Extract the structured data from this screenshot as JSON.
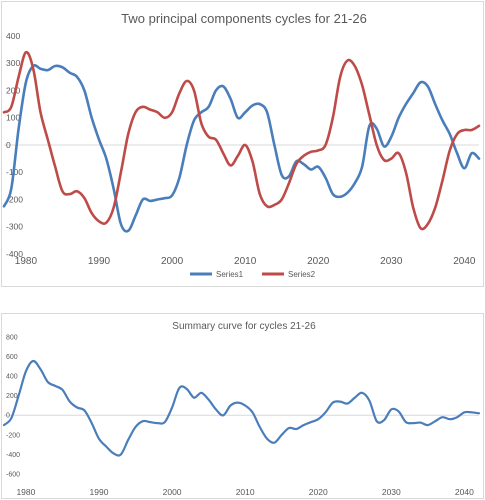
{
  "chart_data": [
    {
      "type": "line",
      "title": "Two principal components cycles for  21-26",
      "xlabel": "",
      "ylabel": "",
      "xlim": [
        1977,
        2042
      ],
      "ylim": [
        -400,
        400
      ],
      "y_ticks": [
        "400",
        "300",
        "200",
        "100",
        "0",
        "-100",
        "-200",
        "-300",
        "-400"
      ],
      "x_ticks": [
        "1980",
        "1990",
        "2000",
        "2010",
        "2020",
        "2030",
        "2040"
      ],
      "grid": false,
      "legend_position": "bottom",
      "series": [
        {
          "name": "Series1",
          "color": "#4a7ebb",
          "points": [
            [
              1977,
              -225
            ],
            [
              1978,
              -160
            ],
            [
              1979,
              60
            ],
            [
              1980,
              230
            ],
            [
              1981,
              290
            ],
            [
              1982,
              280
            ],
            [
              1983,
              275
            ],
            [
              1984,
              290
            ],
            [
              1985,
              285
            ],
            [
              1986,
              265
            ],
            [
              1987,
              250
            ],
            [
              1988,
              200
            ],
            [
              1989,
              100
            ],
            [
              1990,
              20
            ],
            [
              1991,
              -50
            ],
            [
              1992,
              -160
            ],
            [
              1993,
              -290
            ],
            [
              1994,
              -315
            ],
            [
              1995,
              -260
            ],
            [
              1996,
              -200
            ],
            [
              1997,
              -205
            ],
            [
              1998,
              -200
            ],
            [
              1999,
              -195
            ],
            [
              2000,
              -185
            ],
            [
              2001,
              -120
            ],
            [
              2002,
              0
            ],
            [
              2003,
              90
            ],
            [
              2004,
              120
            ],
            [
              2005,
              140
            ],
            [
              2006,
              200
            ],
            [
              2007,
              215
            ],
            [
              2008,
              170
            ],
            [
              2009,
              100
            ],
            [
              2010,
              120
            ],
            [
              2011,
              145
            ],
            [
              2012,
              150
            ],
            [
              2013,
              120
            ],
            [
              2014,
              0
            ],
            [
              2015,
              -110
            ],
            [
              2016,
              -115
            ],
            [
              2017,
              -60
            ],
            [
              2018,
              -70
            ],
            [
              2019,
              -90
            ],
            [
              2020,
              -80
            ],
            [
              2021,
              -120
            ],
            [
              2022,
              -180
            ],
            [
              2023,
              -190
            ],
            [
              2024,
              -175
            ],
            [
              2025,
              -140
            ],
            [
              2026,
              -80
            ],
            [
              2027,
              70
            ],
            [
              2028,
              60
            ],
            [
              2029,
              -5
            ],
            [
              2030,
              30
            ],
            [
              2031,
              100
            ],
            [
              2032,
              150
            ],
            [
              2033,
              190
            ],
            [
              2034,
              230
            ],
            [
              2035,
              215
            ],
            [
              2036,
              150
            ],
            [
              2037,
              90
            ],
            [
              2038,
              40
            ],
            [
              2039,
              -30
            ],
            [
              2040,
              -85
            ],
            [
              2041,
              -30
            ],
            [
              2042,
              -50
            ]
          ]
        },
        {
          "name": "Series2",
          "color": "#be4b48",
          "points": [
            [
              1977,
              120
            ],
            [
              1978,
              140
            ],
            [
              1979,
              250
            ],
            [
              1980,
              340
            ],
            [
              1981,
              280
            ],
            [
              1982,
              120
            ],
            [
              1983,
              20
            ],
            [
              1984,
              -80
            ],
            [
              1985,
              -170
            ],
            [
              1986,
              -180
            ],
            [
              1987,
              -170
            ],
            [
              1988,
              -195
            ],
            [
              1989,
              -250
            ],
            [
              1990,
              -280
            ],
            [
              1991,
              -285
            ],
            [
              1992,
              -230
            ],
            [
              1993,
              -100
            ],
            [
              1994,
              40
            ],
            [
              1995,
              120
            ],
            [
              1996,
              140
            ],
            [
              1997,
              130
            ],
            [
              1998,
              120
            ],
            [
              1999,
              100
            ],
            [
              2000,
              120
            ],
            [
              2001,
              190
            ],
            [
              2002,
              235
            ],
            [
              2003,
              200
            ],
            [
              2004,
              80
            ],
            [
              2005,
              30
            ],
            [
              2006,
              20
            ],
            [
              2007,
              -30
            ],
            [
              2008,
              -75
            ],
            [
              2009,
              -40
            ],
            [
              2010,
              0
            ],
            [
              2011,
              -60
            ],
            [
              2012,
              -180
            ],
            [
              2013,
              -225
            ],
            [
              2014,
              -220
            ],
            [
              2015,
              -200
            ],
            [
              2016,
              -140
            ],
            [
              2017,
              -70
            ],
            [
              2018,
              -40
            ],
            [
              2019,
              -25
            ],
            [
              2020,
              -20
            ],
            [
              2021,
              0
            ],
            [
              2022,
              100
            ],
            [
              2023,
              250
            ],
            [
              2024,
              310
            ],
            [
              2025,
              290
            ],
            [
              2026,
              220
            ],
            [
              2027,
              110
            ],
            [
              2028,
              0
            ],
            [
              2029,
              -55
            ],
            [
              2030,
              -50
            ],
            [
              2031,
              -30
            ],
            [
              2032,
              -100
            ],
            [
              2033,
              -230
            ],
            [
              2034,
              -305
            ],
            [
              2035,
              -290
            ],
            [
              2036,
              -230
            ],
            [
              2037,
              -130
            ],
            [
              2038,
              -20
            ],
            [
              2039,
              40
            ],
            [
              2040,
              55
            ],
            [
              2041,
              55
            ],
            [
              2042,
              70
            ]
          ]
        }
      ]
    },
    {
      "type": "line",
      "title": "Summary curve for cycles 21-26",
      "xlabel": "",
      "ylabel": "",
      "xlim": [
        1977,
        2042
      ],
      "ylim": [
        -600,
        800
      ],
      "y_ticks": [
        "800",
        "600",
        "400",
        "200",
        "0",
        "-200",
        "-400",
        "-600"
      ],
      "x_ticks": [
        "1980",
        "1990",
        "2000",
        "2010",
        "2020",
        "2030",
        "2040"
      ],
      "grid": false,
      "series": [
        {
          "color": "#4a7ebb",
          "points": [
            [
              1977,
              -100
            ],
            [
              1978,
              -30
            ],
            [
              1979,
              200
            ],
            [
              1980,
              450
            ],
            [
              1981,
              555
            ],
            [
              1982,
              470
            ],
            [
              1983,
              340
            ],
            [
              1984,
              300
            ],
            [
              1985,
              260
            ],
            [
              1986,
              140
            ],
            [
              1987,
              80
            ],
            [
              1988,
              50
            ],
            [
              1989,
              -80
            ],
            [
              1990,
              -240
            ],
            [
              1991,
              -320
            ],
            [
              1992,
              -390
            ],
            [
              1993,
              -400
            ],
            [
              1994,
              -250
            ],
            [
              1995,
              -120
            ],
            [
              1996,
              -60
            ],
            [
              1997,
              -70
            ],
            [
              1998,
              -80
            ],
            [
              1999,
              -70
            ],
            [
              2000,
              80
            ],
            [
              2001,
              280
            ],
            [
              2002,
              270
            ],
            [
              2003,
              180
            ],
            [
              2004,
              230
            ],
            [
              2005,
              160
            ],
            [
              2006,
              60
            ],
            [
              2007,
              0
            ],
            [
              2008,
              100
            ],
            [
              2009,
              130
            ],
            [
              2010,
              100
            ],
            [
              2011,
              30
            ],
            [
              2012,
              -120
            ],
            [
              2013,
              -240
            ],
            [
              2014,
              -280
            ],
            [
              2015,
              -200
            ],
            [
              2016,
              -130
            ],
            [
              2017,
              -140
            ],
            [
              2018,
              -100
            ],
            [
              2019,
              -70
            ],
            [
              2020,
              -40
            ],
            [
              2021,
              30
            ],
            [
              2022,
              130
            ],
            [
              2023,
              140
            ],
            [
              2024,
              120
            ],
            [
              2025,
              180
            ],
            [
              2026,
              230
            ],
            [
              2027,
              150
            ],
            [
              2028,
              -60
            ],
            [
              2029,
              -50
            ],
            [
              2030,
              60
            ],
            [
              2031,
              40
            ],
            [
              2032,
              -70
            ],
            [
              2033,
              -80
            ],
            [
              2034,
              -75
            ],
            [
              2035,
              -100
            ],
            [
              2036,
              -60
            ],
            [
              2037,
              -20
            ],
            [
              2038,
              -40
            ],
            [
              2039,
              -20
            ],
            [
              2040,
              30
            ],
            [
              2041,
              30
            ],
            [
              2042,
              20
            ]
          ]
        }
      ]
    }
  ]
}
